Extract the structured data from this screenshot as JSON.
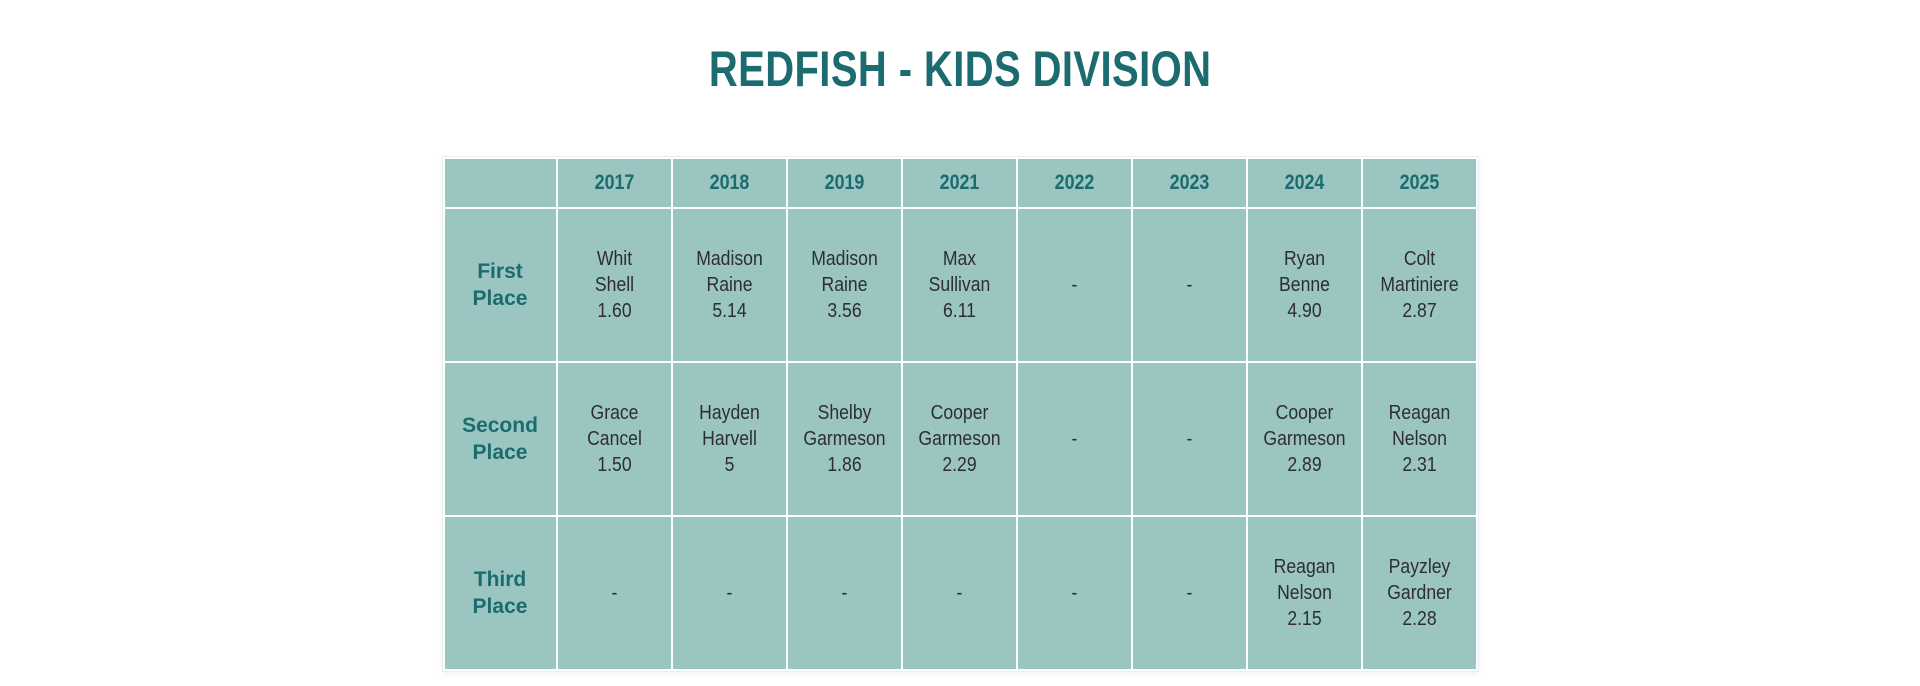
{
  "page": {
    "title": "REDFISH - KIDS DIVISION",
    "colors": {
      "accent_teal": "#1c6b6f",
      "cell_background": "#9ac5c0",
      "cell_text": "#2e2e2e",
      "gutter": "#ffffff",
      "page_background": "#ffffff"
    }
  },
  "table": {
    "columns": [
      "",
      "2017",
      "2018",
      "2019",
      "2021",
      "2022",
      "2023",
      "2024",
      "2025"
    ],
    "rows": [
      {
        "label": "First\nPlace",
        "cells": [
          "Whit\nShell\n1.60",
          "Madison\nRaine\n5.14",
          "Madison\nRaine\n3.56",
          "Max\nSullivan\n6.11",
          "-",
          "-",
          "Ryan\nBenne\n4.90",
          "Colt\nMartiniere\n2.87"
        ]
      },
      {
        "label": "Second\nPlace",
        "cells": [
          "Grace\nCancel\n1.50",
          "Hayden\nHarvell\n5",
          "Shelby\nGarmeson\n1.86",
          "Cooper\nGarmeson\n2.29",
          "-",
          "-",
          "Cooper\nGarmeson\n2.89",
          "Reagan\nNelson\n2.31"
        ]
      },
      {
        "label": "Third\nPlace",
        "cells": [
          "-",
          "-",
          "-",
          "-",
          "-",
          "-",
          "Reagan\nNelson\n2.15",
          "Payzley\nGardner\n2.28"
        ]
      }
    ]
  },
  "chart_data": {
    "type": "table",
    "title": "REDFISH - KIDS DIVISION",
    "columns": [
      "2017",
      "2018",
      "2019",
      "2021",
      "2022",
      "2023",
      "2024",
      "2025"
    ],
    "rows": [
      {
        "place": "First Place",
        "entries": [
          {
            "year": "2017",
            "name": "Whit Shell",
            "score": 1.6
          },
          {
            "year": "2018",
            "name": "Madison Raine",
            "score": 5.14
          },
          {
            "year": "2019",
            "name": "Madison Raine",
            "score": 3.56
          },
          {
            "year": "2021",
            "name": "Max Sullivan",
            "score": 6.11
          },
          {
            "year": "2022",
            "name": null,
            "score": null
          },
          {
            "year": "2023",
            "name": null,
            "score": null
          },
          {
            "year": "2024",
            "name": "Ryan Benne",
            "score": 4.9
          },
          {
            "year": "2025",
            "name": "Colt Martiniere",
            "score": 2.87
          }
        ]
      },
      {
        "place": "Second Place",
        "entries": [
          {
            "year": "2017",
            "name": "Grace Cancel",
            "score": 1.5
          },
          {
            "year": "2018",
            "name": "Hayden Harvell",
            "score": 5
          },
          {
            "year": "2019",
            "name": "Shelby Garmeson",
            "score": 1.86
          },
          {
            "year": "2021",
            "name": "Cooper Garmeson",
            "score": 2.29
          },
          {
            "year": "2022",
            "name": null,
            "score": null
          },
          {
            "year": "2023",
            "name": null,
            "score": null
          },
          {
            "year": "2024",
            "name": "Cooper Garmeson",
            "score": 2.89
          },
          {
            "year": "2025",
            "name": "Reagan Nelson",
            "score": 2.31
          }
        ]
      },
      {
        "place": "Third Place",
        "entries": [
          {
            "year": "2017",
            "name": null,
            "score": null
          },
          {
            "year": "2018",
            "name": null,
            "score": null
          },
          {
            "year": "2019",
            "name": null,
            "score": null
          },
          {
            "year": "2021",
            "name": null,
            "score": null
          },
          {
            "year": "2022",
            "name": null,
            "score": null
          },
          {
            "year": "2023",
            "name": null,
            "score": null
          },
          {
            "year": "2024",
            "name": "Reagan Nelson",
            "score": 2.15
          },
          {
            "year": "2025",
            "name": "Payzley Gardner",
            "score": 2.28
          }
        ]
      }
    ],
    "layout": {
      "header_position": "top-row-years-left-column-places",
      "empty_marker": "-"
    }
  }
}
